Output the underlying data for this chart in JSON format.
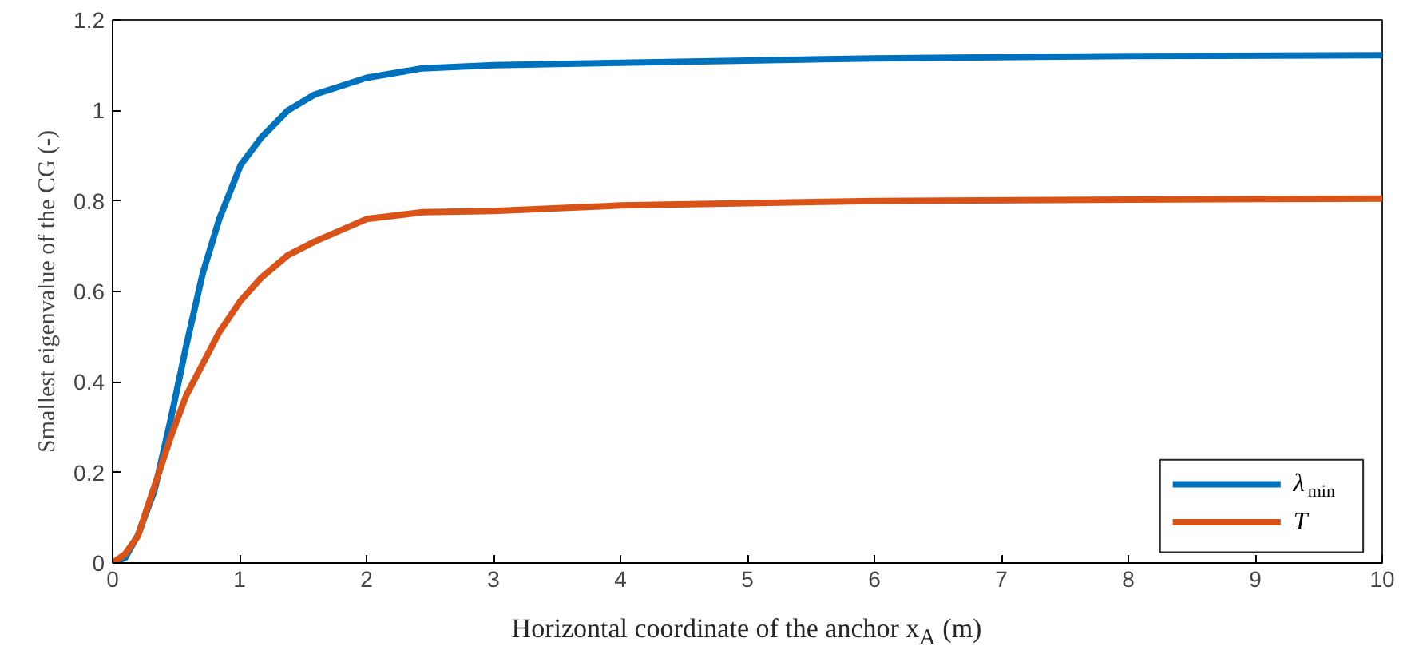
{
  "chart_data": {
    "type": "line",
    "xlabel": "Horizontal coordinate of the anchor x$_{A}$ (m)",
    "ylabel": "Smallest eigenvalue of the CG (-)",
    "xlim": [
      0,
      10
    ],
    "ylim": [
      0,
      1.2
    ],
    "xticks": [
      0,
      1,
      2,
      3,
      4,
      5,
      6,
      7,
      8,
      9,
      10
    ],
    "yticks": [
      0,
      0.2,
      0.4,
      0.6,
      0.8,
      1,
      1.2
    ],
    "grid": false,
    "legend": "bottom right",
    "line_style": "solid",
    "marker": "none",
    "x": [
      0,
      0.1,
      0.2,
      0.33,
      0.46,
      0.58,
      0.71,
      0.84,
      1.01,
      1.17,
      1.38,
      1.59,
      2.0,
      2.44,
      3.0,
      4.0,
      5.0,
      6.0,
      8.0,
      10.0
    ],
    "series": [
      {
        "name": "λ$_{min}$",
        "color": "#0072bd",
        "values": [
          0,
          0.012,
          0.062,
          0.16,
          0.32,
          0.48,
          0.64,
          0.76,
          0.88,
          0.94,
          1.0,
          1.035,
          1.072,
          1.093,
          1.1,
          1.105,
          1.11,
          1.115,
          1.12,
          1.122
        ]
      },
      {
        "name": "T",
        "color": "#d95319",
        "values": [
          0,
          0.02,
          0.06,
          0.17,
          0.28,
          0.37,
          0.44,
          0.51,
          0.58,
          0.63,
          0.68,
          0.71,
          0.76,
          0.775,
          0.778,
          0.79,
          0.795,
          0.8,
          0.803,
          0.805
        ]
      }
    ]
  }
}
